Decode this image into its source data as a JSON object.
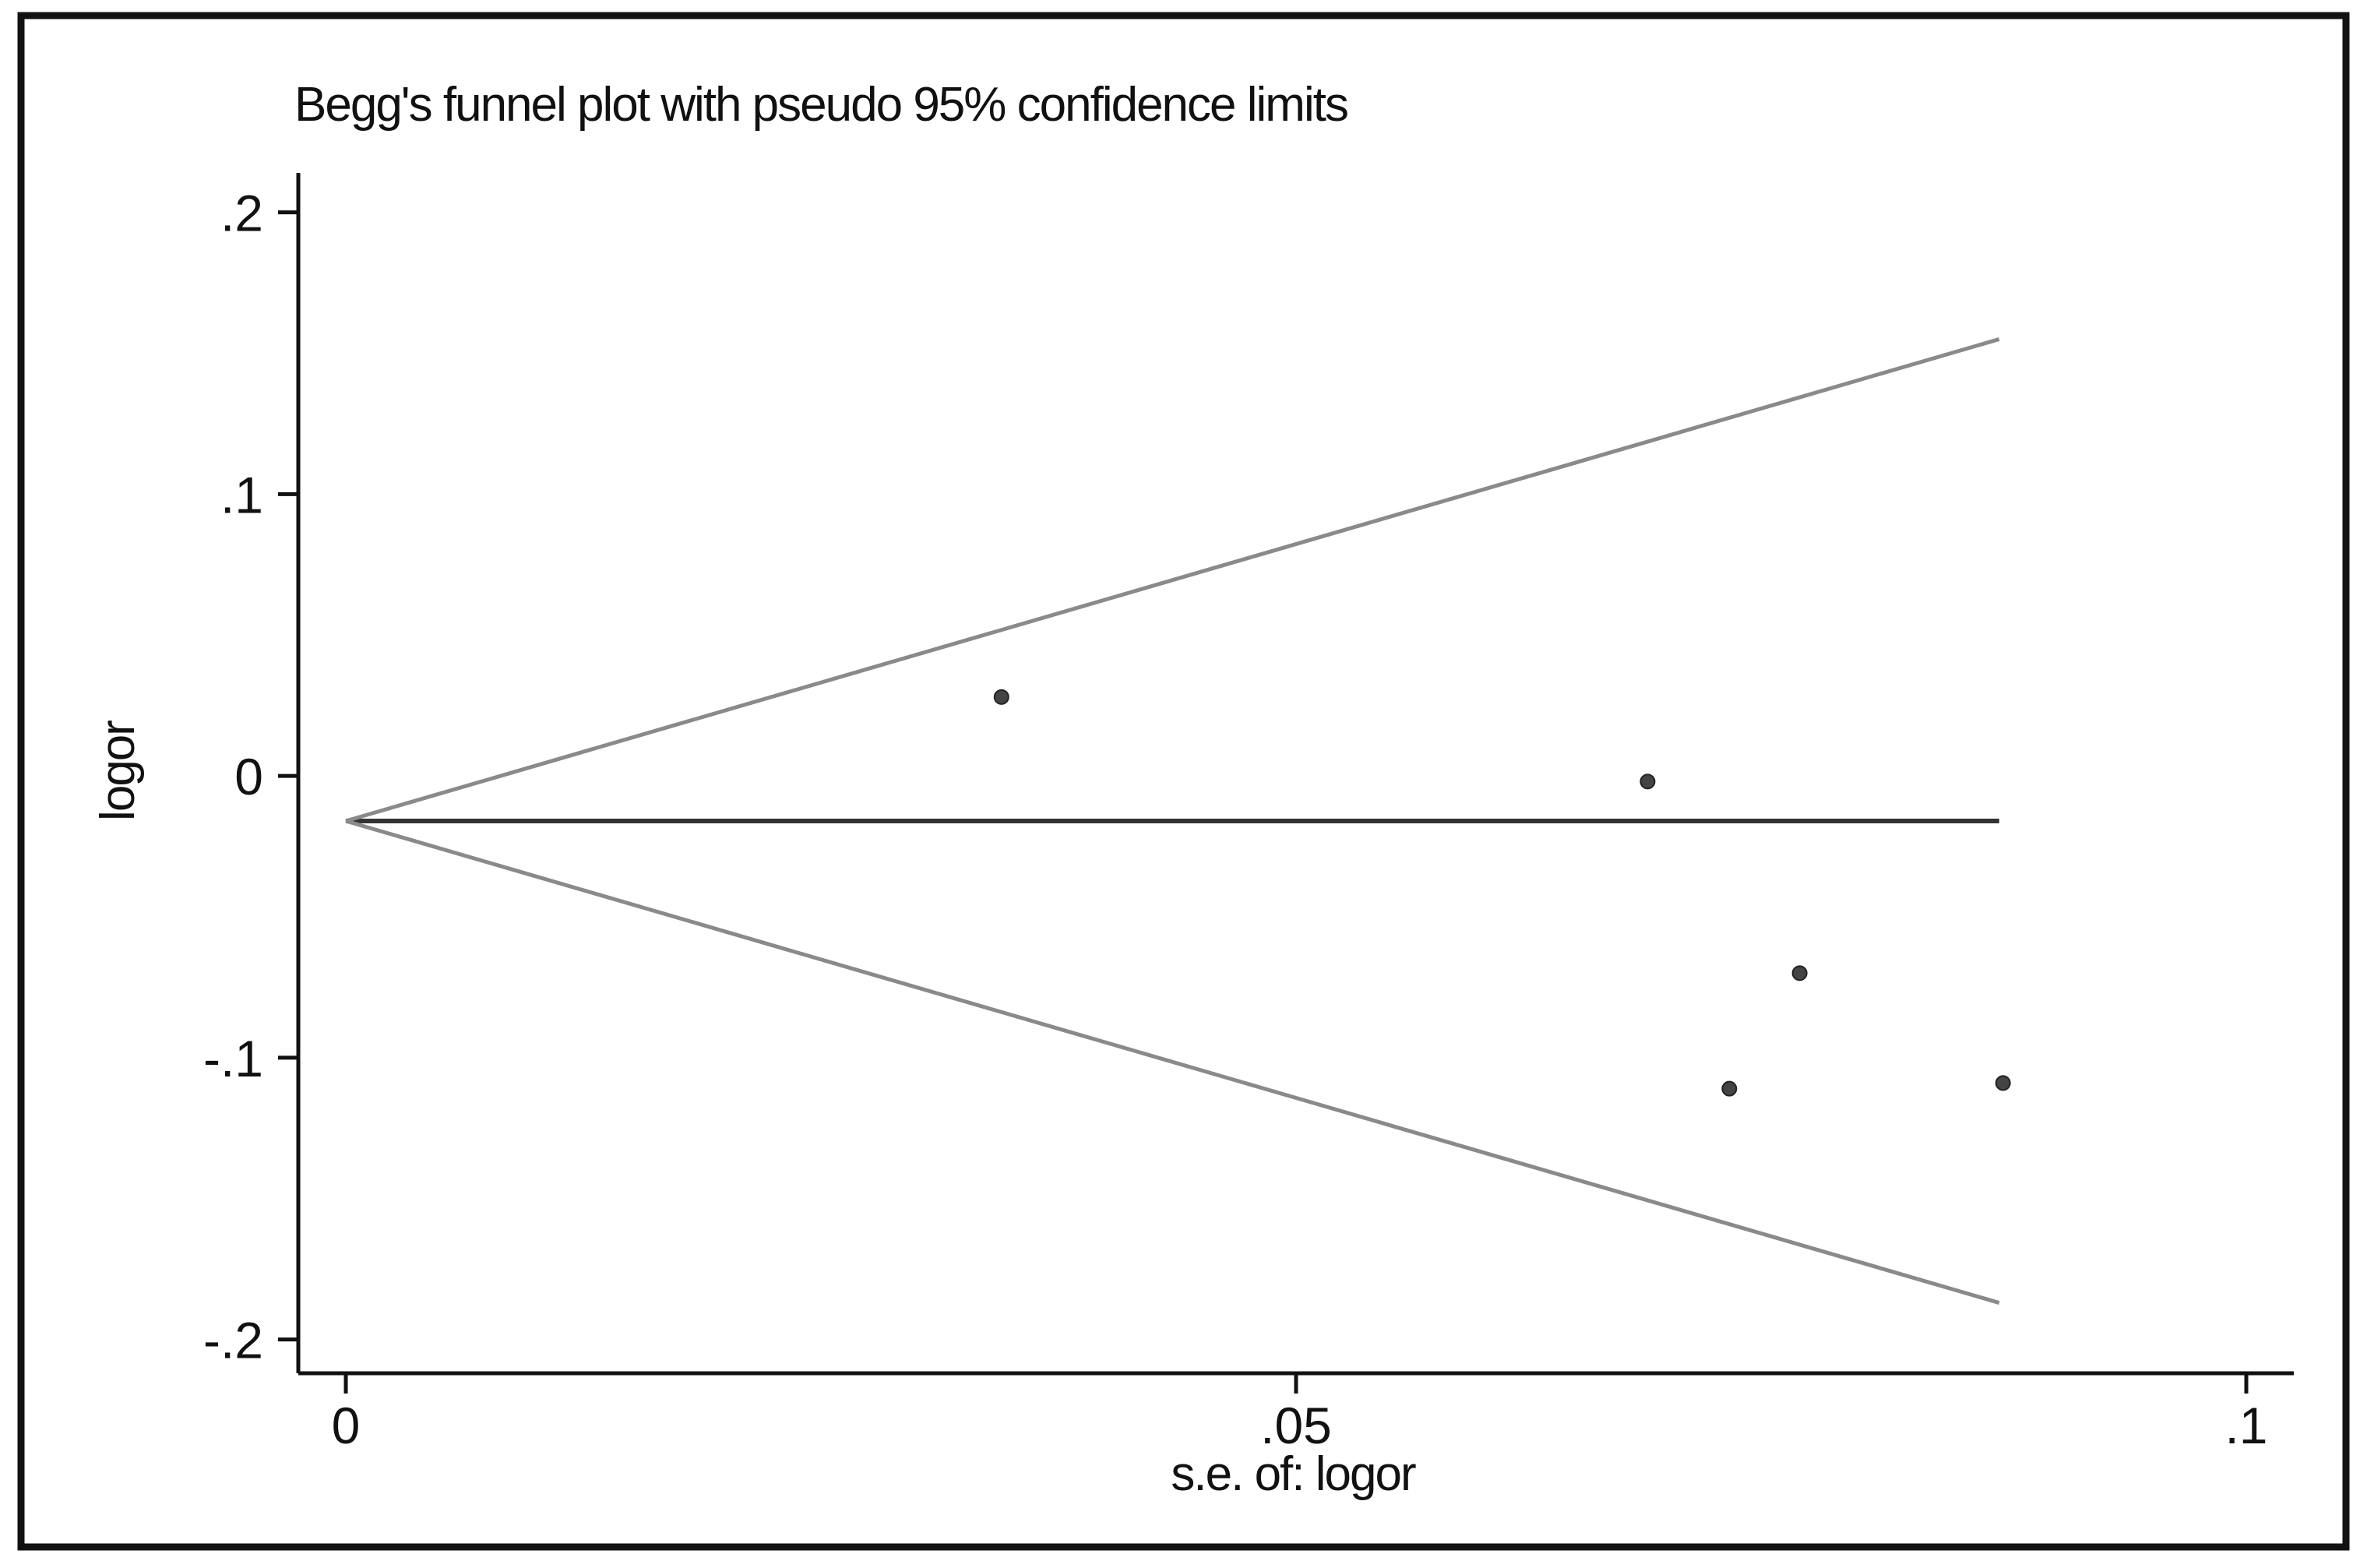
{
  "chart_data": {
    "type": "scatter",
    "title": "Begg's funnel plot with pseudo 95% confidence limits",
    "xlabel": "s.e. of: logor",
    "ylabel": "logor",
    "xlim": [
      -0.0025,
      0.1025
    ],
    "ylim": [
      -0.212,
      0.214
    ],
    "x_ticks": [
      {
        "value": 0,
        "label": "0"
      },
      {
        "value": 0.05,
        "label": ".05"
      },
      {
        "value": 0.1,
        "label": ".1"
      }
    ],
    "y_ticks": [
      {
        "value": 0.2,
        "label": ".2"
      },
      {
        "value": 0.1,
        "label": ".1"
      },
      {
        "value": 0,
        "label": "0"
      },
      {
        "value": -0.1,
        "label": "-.1"
      },
      {
        "value": -0.2,
        "label": "-.2"
      }
    ],
    "grid": false,
    "legend": "none",
    "pooled_estimate": -0.016,
    "se_max": 0.087,
    "funnel_upper": [
      [
        0,
        -0.016
      ],
      [
        0.087,
        0.155
      ]
    ],
    "funnel_lower": [
      [
        0,
        -0.016
      ],
      [
        0.087,
        -0.187
      ]
    ],
    "points": [
      {
        "x": 0.0345,
        "y": 0.028
      },
      {
        "x": 0.0685,
        "y": -0.002
      },
      {
        "x": 0.0728,
        "y": -0.111
      },
      {
        "x": 0.0765,
        "y": -0.07
      },
      {
        "x": 0.0872,
        "y": -0.109
      }
    ],
    "colors": {
      "frame": "#111111",
      "axis": "#111111",
      "funnel": "#8a8a8a",
      "pooled_line": "#333333",
      "points": "#444444"
    }
  }
}
